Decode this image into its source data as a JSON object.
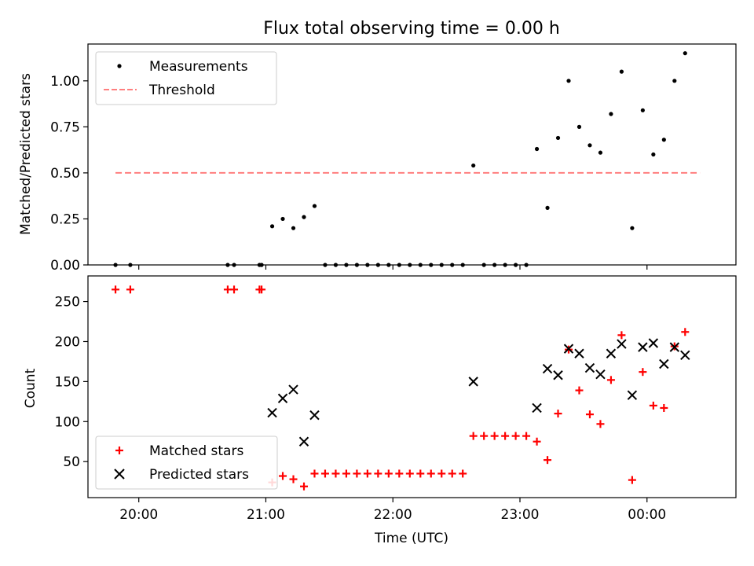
{
  "figure_title": "Flux total observing time = 0.00 h",
  "colors": {
    "measurement": "#000000",
    "threshold": "#ff7f7f",
    "matched": "#ff0000",
    "predicted": "#000000"
  },
  "chart_data": [
    {
      "type": "scatter",
      "panel": "top",
      "xlabel": "",
      "ylabel": "Matched/Predicted stars",
      "xlim": [
        "19:36",
        "00:42"
      ],
      "ylim": [
        0,
        1.2
      ],
      "yticks": [
        "0.00",
        "0.25",
        "0.50",
        "0.75",
        "1.00"
      ],
      "legend_position": "upper-left",
      "series": [
        {
          "name": "Measurements",
          "marker": "dot",
          "points": [
            [
              "19:49",
              0
            ],
            [
              "19:56",
              0
            ],
            [
              "20:42",
              0
            ],
            [
              "20:45",
              0
            ],
            [
              "20:57",
              0
            ],
            [
              "20:58",
              0
            ],
            [
              "21:03",
              0.21
            ],
            [
              "21:08",
              0.25
            ],
            [
              "21:13",
              0.2
            ],
            [
              "21:18",
              0.26
            ],
            [
              "21:23",
              0.32
            ],
            [
              "21:28",
              0
            ],
            [
              "21:33",
              0
            ],
            [
              "21:38",
              0
            ],
            [
              "21:43",
              0
            ],
            [
              "21:48",
              0
            ],
            [
              "21:53",
              0
            ],
            [
              "21:58",
              0
            ],
            [
              "22:03",
              0
            ],
            [
              "22:08",
              0
            ],
            [
              "22:13",
              0
            ],
            [
              "22:18",
              0
            ],
            [
              "22:23",
              0
            ],
            [
              "22:28",
              0
            ],
            [
              "22:33",
              0
            ],
            [
              "22:38",
              0.54
            ],
            [
              "22:43",
              0
            ],
            [
              "22:48",
              0
            ],
            [
              "22:53",
              0
            ],
            [
              "22:58",
              0
            ],
            [
              "23:03",
              0
            ],
            [
              "23:08",
              0.63
            ],
            [
              "23:13",
              0.31
            ],
            [
              "23:18",
              0.69
            ],
            [
              "23:23",
              1.0
            ],
            [
              "23:28",
              0.75
            ],
            [
              "23:33",
              0.65
            ],
            [
              "23:38",
              0.61
            ],
            [
              "23:43",
              0.82
            ],
            [
              "23:48",
              1.05
            ],
            [
              "23:53",
              0.2
            ],
            [
              "23:58",
              0.84
            ],
            [
              "00:03",
              0.6
            ],
            [
              "00:08",
              0.68
            ],
            [
              "00:13",
              1.0
            ],
            [
              "00:18",
              1.15
            ]
          ]
        },
        {
          "name": "Threshold",
          "line_style": "dashed",
          "points": [
            [
              "19:49",
              0.5
            ],
            [
              "00:25",
              0.5
            ]
          ]
        }
      ]
    },
    {
      "type": "scatter",
      "panel": "bottom",
      "xlabel": "Time (UTC)",
      "ylabel": "Count",
      "xlim": [
        "19:36",
        "00:42"
      ],
      "ylim": [
        5,
        282
      ],
      "xticks": [
        "20:00",
        "21:00",
        "22:00",
        "23:00",
        "00:00"
      ],
      "yticks": [
        "50",
        "100",
        "150",
        "200",
        "250"
      ],
      "legend_position": "lower-left",
      "series": [
        {
          "name": "Matched stars",
          "marker": "plus",
          "points": [
            [
              "19:49",
              265
            ],
            [
              "19:56",
              265
            ],
            [
              "20:42",
              265
            ],
            [
              "20:45",
              265
            ],
            [
              "20:57",
              265
            ],
            [
              "20:58",
              265
            ],
            [
              "21:03",
              24
            ],
            [
              "21:08",
              32
            ],
            [
              "21:13",
              28
            ],
            [
              "21:18",
              19
            ],
            [
              "21:23",
              35
            ],
            [
              "21:28",
              35
            ],
            [
              "21:33",
              35
            ],
            [
              "21:38",
              35
            ],
            [
              "21:43",
              35
            ],
            [
              "21:48",
              35
            ],
            [
              "21:53",
              35
            ],
            [
              "21:58",
              35
            ],
            [
              "22:03",
              35
            ],
            [
              "22:08",
              35
            ],
            [
              "22:13",
              35
            ],
            [
              "22:18",
              35
            ],
            [
              "22:23",
              35
            ],
            [
              "22:28",
              35
            ],
            [
              "22:33",
              35
            ],
            [
              "22:38",
              82
            ],
            [
              "22:43",
              82
            ],
            [
              "22:48",
              82
            ],
            [
              "22:53",
              82
            ],
            [
              "22:58",
              82
            ],
            [
              "23:03",
              82
            ],
            [
              "23:08",
              75
            ],
            [
              "23:13",
              52
            ],
            [
              "23:18",
              110
            ],
            [
              "23:23",
              190
            ],
            [
              "23:28",
              139
            ],
            [
              "23:33",
              109
            ],
            [
              "23:38",
              97
            ],
            [
              "23:43",
              152
            ],
            [
              "23:48",
              208
            ],
            [
              "23:53",
              27
            ],
            [
              "23:58",
              162
            ],
            [
              "00:03",
              120
            ],
            [
              "00:08",
              117
            ],
            [
              "00:13",
              194
            ],
            [
              "00:18",
              212
            ]
          ]
        },
        {
          "name": "Predicted stars",
          "marker": "x",
          "points": [
            [
              "21:03",
              111
            ],
            [
              "21:08",
              129
            ],
            [
              "21:13",
              140
            ],
            [
              "21:18",
              75
            ],
            [
              "21:23",
              108
            ],
            [
              "22:38",
              150
            ],
            [
              "23:08",
              117
            ],
            [
              "23:13",
              166
            ],
            [
              "23:18",
              158
            ],
            [
              "23:23",
              191
            ],
            [
              "23:28",
              185
            ],
            [
              "23:33",
              167
            ],
            [
              "23:38",
              159
            ],
            [
              "23:43",
              185
            ],
            [
              "23:48",
              197
            ],
            [
              "23:53",
              133
            ],
            [
              "23:58",
              193
            ],
            [
              "00:03",
              198
            ],
            [
              "00:08",
              172
            ],
            [
              "00:13",
              193
            ],
            [
              "00:18",
              183
            ]
          ]
        }
      ]
    }
  ]
}
